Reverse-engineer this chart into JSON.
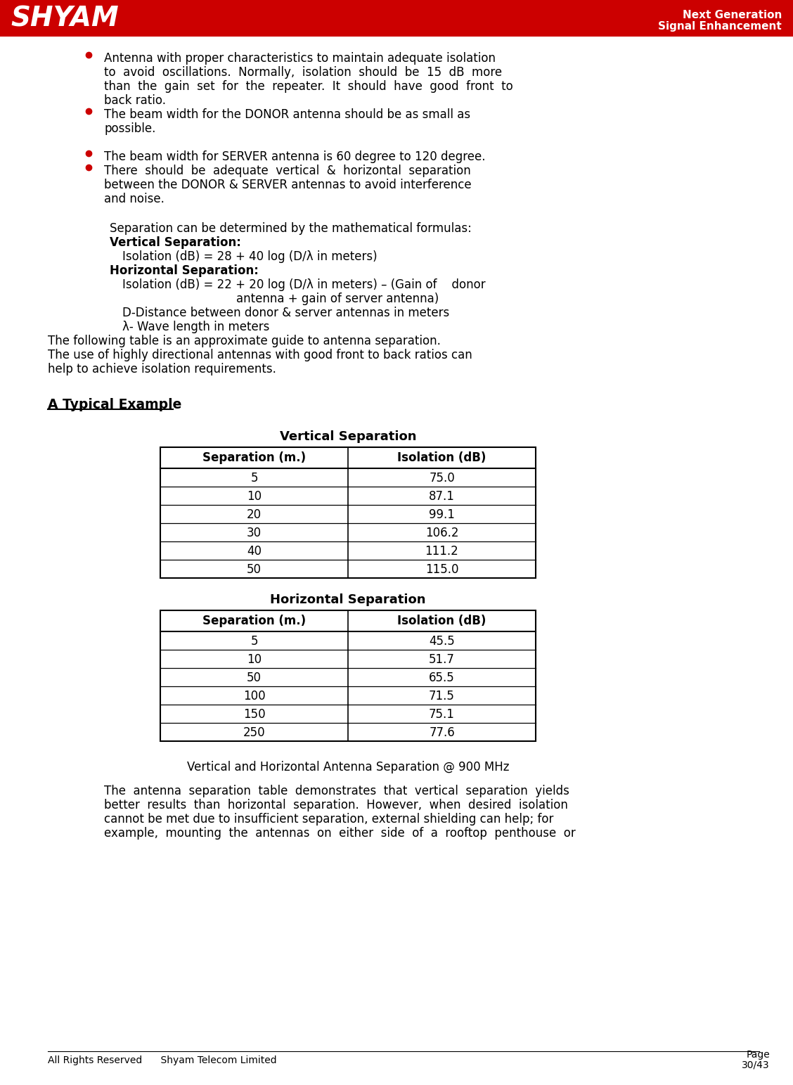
{
  "header_bg_color": "#CC0000",
  "header_text_color": "#FFFFFF",
  "shyam_text": "SHYAM",
  "header_right_line1": "Next Generation",
  "header_right_line2": "Signal Enhancement",
  "page_label": "Page",
  "page_number": "30/43",
  "footer_left": "All Rights Reserved      Shyam Telecom Limited",
  "bg_color": "#FFFFFF",
  "body_text_color": "#000000",
  "bullet_color": "#CC0000",
  "separation_intro": "Separation can be determined by the mathematical formulas:",
  "vert_sep_label": "Vertical Separation:",
  "vert_sep_formula": "Isolation (dB) = 28 + 40 log (D/λ in meters)",
  "horiz_sep_label": "Horizontal Separation:",
  "horiz_sep_formula": "Isolation (dB) = 22 + 20 log (D/λ in meters) – (Gain of    donor",
  "horiz_sep_formula2": "antenna + gain of server antenna)",
  "d_label": "D-Distance between donor & server antennas in meters",
  "lambda_label": "λ- Wave length in meters",
  "table_intro1": "The following table is an approximate guide to antenna separation.",
  "table_intro2": "The use of highly directional antennas with good front to back ratios can",
  "table_intro3": "help to achieve isolation requirements.",
  "typical_example_label": "A Typical Example",
  "vert_table_title": "Vertical Separation",
  "vert_col1_header": "Separation (m.)",
  "vert_col2_header": "Isolation (dB)",
  "vert_data": [
    [
      "5",
      "75.0"
    ],
    [
      "10",
      "87.1"
    ],
    [
      "20",
      "99.1"
    ],
    [
      "30",
      "106.2"
    ],
    [
      "40",
      "111.2"
    ],
    [
      "50",
      "115.0"
    ]
  ],
  "horiz_table_title": "Horizontal Separation",
  "horiz_col1_header": "Separation (m.)",
  "horiz_col2_header": "Isolation (dB)",
  "horiz_data": [
    [
      "5",
      "45.5"
    ],
    [
      "10",
      "51.7"
    ],
    [
      "50",
      "65.5"
    ],
    [
      "100",
      "71.5"
    ],
    [
      "150",
      "75.1"
    ],
    [
      "250",
      "77.6"
    ]
  ],
  "caption": "Vertical and Horizontal Antenna Separation @ 900 MHz",
  "conclusion1": "The  antenna  separation  table  demonstrates  that  vertical  separation  yields",
  "conclusion2": "better  results  than  horizontal  separation.  However,  when  desired  isolation",
  "conclusion3": "cannot be met due to insufficient separation, external shielding can help; for",
  "conclusion4": "example,  mounting  the  antennas  on  either  side  of  a  rooftop  penthouse  or",
  "bp1_line1": "Antenna with proper characteristics to maintain adequate isolation",
  "bp1_line2": "to  avoid  oscillations.  Normally,  isolation  should  be  15  dB  more",
  "bp1_line3": "than  the  gain  set  for  the  repeater.  It  should  have  good  front  to",
  "bp1_line4": "back ratio.",
  "bp2_line1": "The beam width for the DONOR antenna should be as small as",
  "bp2_line2": "possible.",
  "bp3_line1": "The beam width for SERVER antenna is 60 degree to 120 degree.",
  "bp4_line1": "There  should  be  adequate  vertical  &  horizontal  separation",
  "bp4_line2": "between the DONOR & SERVER antennas to avoid interference",
  "bp4_line3": "and noise."
}
